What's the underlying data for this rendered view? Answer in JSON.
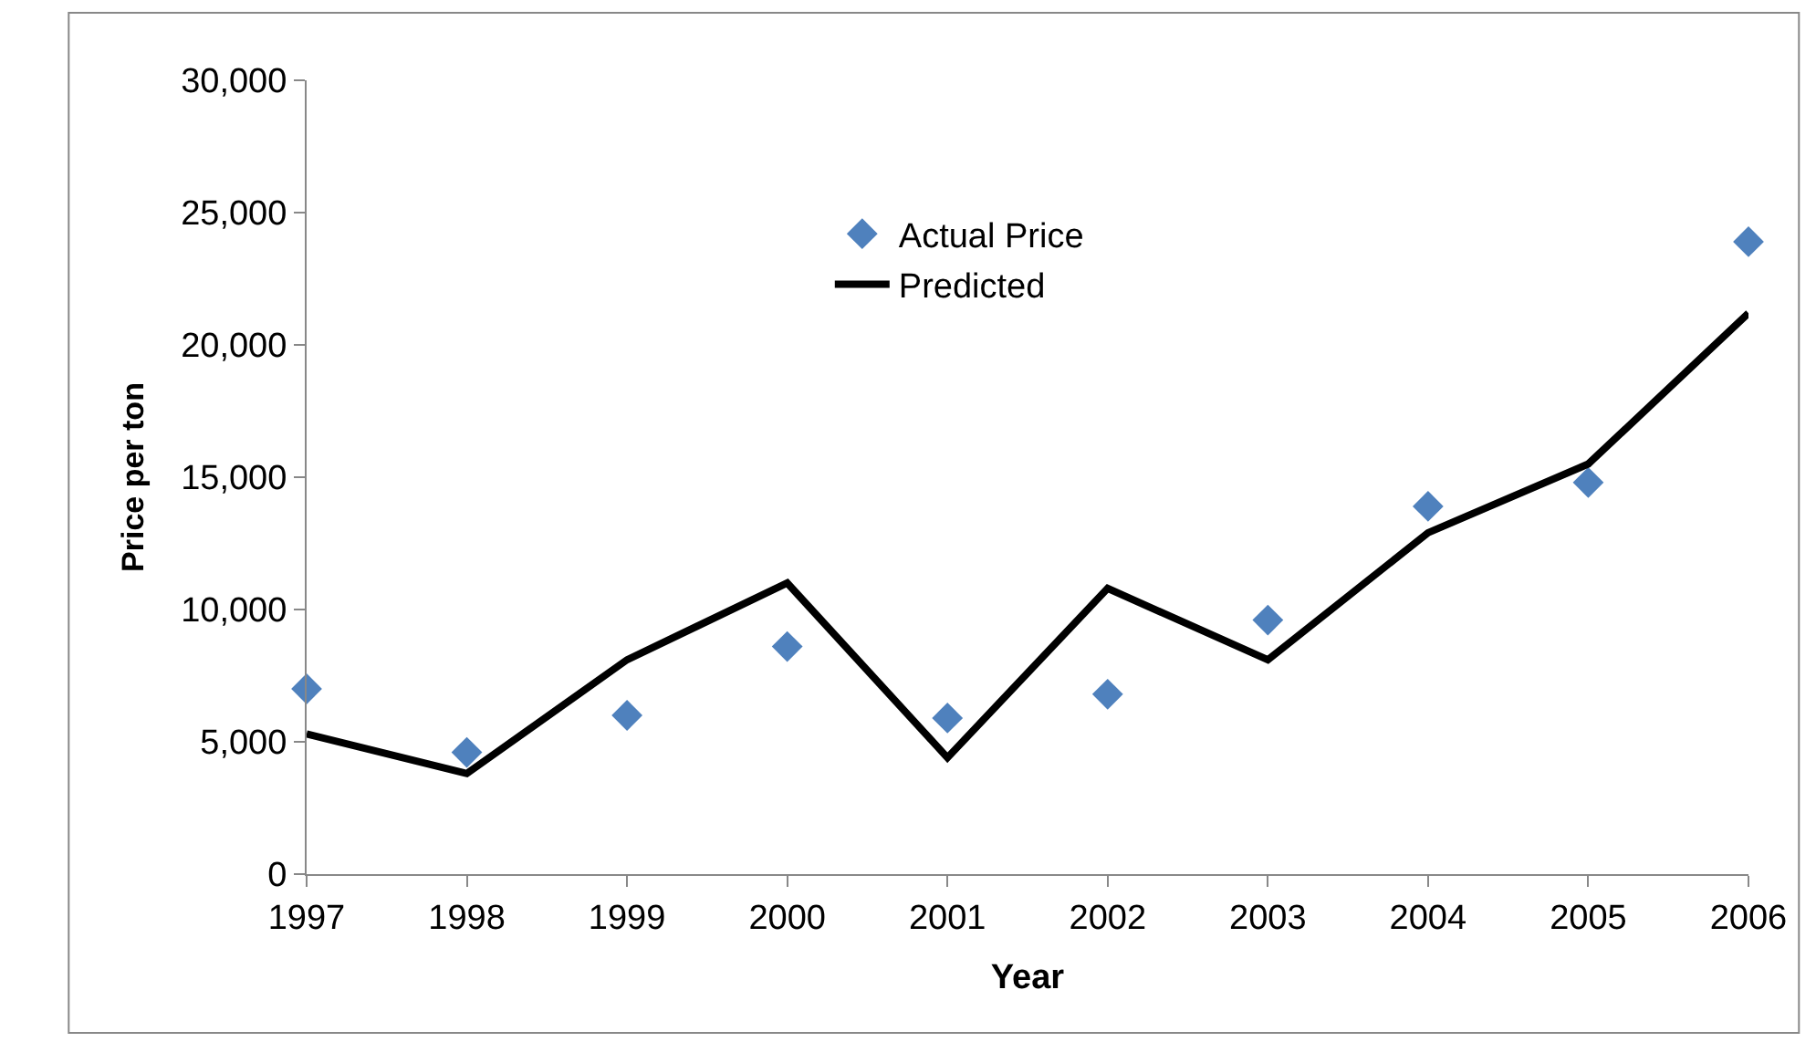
{
  "chart_data": {
    "type": "scatter",
    "xlabel": "Year",
    "ylabel": "Price per ton",
    "x": [
      1997,
      1998,
      1999,
      2000,
      2001,
      2002,
      2003,
      2004,
      2005,
      2006
    ],
    "xlim": [
      1997,
      2006
    ],
    "xticks": [
      1997,
      1998,
      1999,
      2000,
      2001,
      2002,
      2003,
      2004,
      2005,
      2006
    ],
    "ylim": [
      0,
      30000
    ],
    "yticks": [
      {
        "value": 0,
        "label": "0"
      },
      {
        "value": 5000,
        "label": "5,000"
      },
      {
        "value": 10000,
        "label": "10,000"
      },
      {
        "value": 15000,
        "label": "15,000"
      },
      {
        "value": 20000,
        "label": "20,000"
      },
      {
        "value": 25000,
        "label": "25,000"
      },
      {
        "value": 30000,
        "label": "30,000"
      }
    ],
    "legend": "top",
    "series": [
      {
        "name": "Actual Price",
        "marker": "diamond",
        "color": "#4f81bd",
        "values": [
          7000,
          4600,
          6000,
          8600,
          5900,
          6800,
          9600,
          13900,
          14800,
          23900
        ]
      },
      {
        "name": "Predicted",
        "type": "line",
        "marker": "none",
        "line_style": "solid",
        "color": "#000000",
        "values": [
          5300,
          3800,
          8100,
          11000,
          4400,
          10800,
          8100,
          12900,
          15500,
          21200
        ]
      }
    ]
  }
}
